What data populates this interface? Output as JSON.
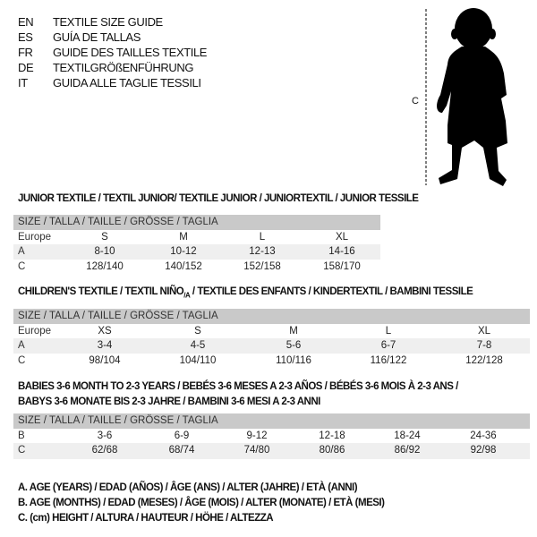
{
  "titles": [
    {
      "code": "EN",
      "text": "TEXTILE SIZE GUIDE"
    },
    {
      "code": "ES",
      "text": "GUÍA DE TALLAS"
    },
    {
      "code": "FR",
      "text": "GUIDE DES TAILLES TEXTILE"
    },
    {
      "code": "DE",
      "text": "TEXTILGRÖßENFÜHRUNG"
    },
    {
      "code": "IT",
      "text": "GUIDA ALLE TAGLIE TESSILI"
    }
  ],
  "figure": {
    "label": "C",
    "icon": "baby-silhouette"
  },
  "junior": {
    "heading": "JUNIOR TEXTILE / TEXTIL JUNIOR/ TEXTILE JUNIOR / JUNIORTEXTIL / JUNIOR TESSILE",
    "size_header": "SIZE / TALLA / TAILLE / GRÖSSE / TAGLIA",
    "rows": [
      {
        "label": "Europe",
        "cells": [
          "S",
          "M",
          "L",
          "XL"
        ]
      },
      {
        "label": "A",
        "cells": [
          "8-10",
          "10-12",
          "12-13",
          "14-16"
        ]
      },
      {
        "label": "C",
        "cells": [
          "128/140",
          "140/152",
          "152/158",
          "158/170"
        ]
      }
    ]
  },
  "children": {
    "heading_pre": "CHILDREN'S TEXTILE / TEXTIL NIÑO",
    "heading_sub": "/A",
    "heading_post": " / TEXTILE DES ENFANTS / KINDERTEXTIL / BAMBINI TESSILE",
    "size_header": "SIZE / TALLA / TAILLE / GRÖSSE / TAGLIA",
    "rows": [
      {
        "label": "Europe",
        "cells": [
          "XS",
          "S",
          "M",
          "L",
          "XL"
        ]
      },
      {
        "label": "A",
        "cells": [
          "3-4",
          "4-5",
          "5-6",
          "6-7",
          "7-8"
        ]
      },
      {
        "label": "C",
        "cells": [
          "98/104",
          "104/110",
          "110/116",
          "116/122",
          "122/128"
        ]
      }
    ]
  },
  "babies": {
    "heading_line1": "BABIES 3-6 MONTH TO 2-3 YEARS / BEBÉS 3-6 MESES A 2-3 AÑOS / BÉBÉS 3-6 MOIS À 2-3 ANS /",
    "heading_line2": "BABYS 3-6 MONATE BIS 2-3 JAHRE / BAMBINI 3-6 MESI A 2-3 ANNI",
    "size_header": "SIZE / TALLA / TAILLE / GRÖSSE / TAGLIA",
    "rows": [
      {
        "label": "B",
        "cells": [
          "3-6",
          "6-9",
          "9-12",
          "12-18",
          "18-24",
          "24-36"
        ]
      },
      {
        "label": "C",
        "cells": [
          "62/68",
          "68/74",
          "74/80",
          "80/86",
          "86/92",
          "92/98"
        ]
      }
    ]
  },
  "legend": [
    "A. AGE (YEARS) / EDAD (AÑOS) / ÂGE (ANS) / ALTER (JAHRE) / ETÀ (ANNI)",
    "B. AGE (MONTHS) / EDAD (MESES) / ÂGE (MOIS) / ALTER (MONATE) / ETÀ (MESI)",
    "C. (cm) HEIGHT / ALTURA / HAUTEUR / HÖHE / ALTEZZA"
  ]
}
